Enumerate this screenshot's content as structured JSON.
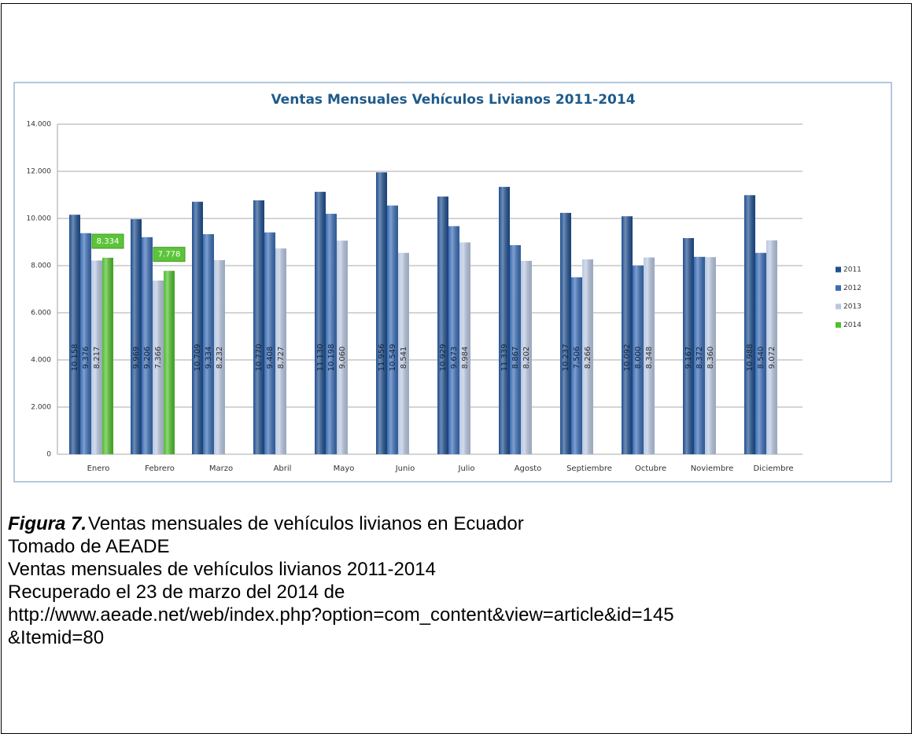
{
  "chart_data": {
    "type": "bar",
    "title": "Ventas Mensuales Vehículos Livianos 2011-2014",
    "categories": [
      "Enero",
      "Febrero",
      "Marzo",
      "Abril",
      "Mayo",
      "Junio",
      "Julio",
      "Agosto",
      "Septiembre",
      "Octubre",
      "Noviembre",
      "Diciembre"
    ],
    "series": [
      {
        "name": "2011",
        "color": "#1f4f8f",
        "values": [
          10158,
          9969,
          10709,
          10770,
          11130,
          11956,
          10929,
          11339,
          10237,
          10092,
          9167,
          10988
        ],
        "value_labels": [
          "10.158",
          "9.969",
          "10.709",
          "10.770",
          "11.130",
          "11.956",
          "10.929",
          "11.339",
          "10.237",
          "10.092",
          "9.167",
          "10.988"
        ]
      },
      {
        "name": "2012",
        "color": "#3a6db5",
        "values": [
          9376,
          9206,
          9334,
          9408,
          10198,
          10549,
          9673,
          8867,
          7506,
          8000,
          8372,
          8540
        ],
        "value_labels": [
          "9.376",
          "9.206",
          "9.334",
          "9.408",
          "10.198",
          "10.549",
          "9.673",
          "8.867",
          "7.506",
          "8.000",
          "8.372",
          "8.540"
        ]
      },
      {
        "name": "2013",
        "color": "#b9c8e2",
        "values": [
          8217,
          7366,
          8232,
          8727,
          9060,
          8541,
          8984,
          8202,
          8266,
          8348,
          8360,
          9072
        ],
        "value_labels": [
          "8.217",
          "7.366",
          "8.232",
          "8.727",
          "9.060",
          "8.541",
          "8.984",
          "8.202",
          "8.266",
          "8.348",
          "8.360",
          "9.072"
        ]
      },
      {
        "name": "2014",
        "color": "#4fbf2c",
        "values": [
          8334,
          7778,
          null,
          null,
          null,
          null,
          null,
          null,
          null,
          null,
          null,
          null
        ],
        "value_labels": [
          "8.334",
          "7.778",
          null,
          null,
          null,
          null,
          null,
          null,
          null,
          null,
          null,
          null
        ]
      }
    ],
    "ylim": [
      0,
      14000
    ],
    "yticks": [
      0,
      {
        "value": 2000,
        "label": "2.000"
      },
      {
        "value": 4000,
        "label": "4.000"
      },
      {
        "value": 6000,
        "label": "6.000"
      },
      {
        "value": 8000,
        "label": "8.000"
      },
      {
        "value": 10000,
        "label": "10.000"
      },
      {
        "value": 12000,
        "label": "12.000"
      },
      {
        "value": 14000,
        "label": "14.000"
      }
    ],
    "grid": true,
    "legend": "right"
  },
  "caption": {
    "label": "Figura  7.",
    "lines": [
      "Ventas mensuales de vehículos livianos en Ecuador",
      "Tomado de AEADE",
      "Ventas mensuales de vehículos livianos 2011-2014",
      "Recuperado el 23 de marzo del 2014 de",
      "http://www.aeade.net/web/index.php?option=com_content&view=article&id=145",
      "&Itemid=80"
    ]
  }
}
